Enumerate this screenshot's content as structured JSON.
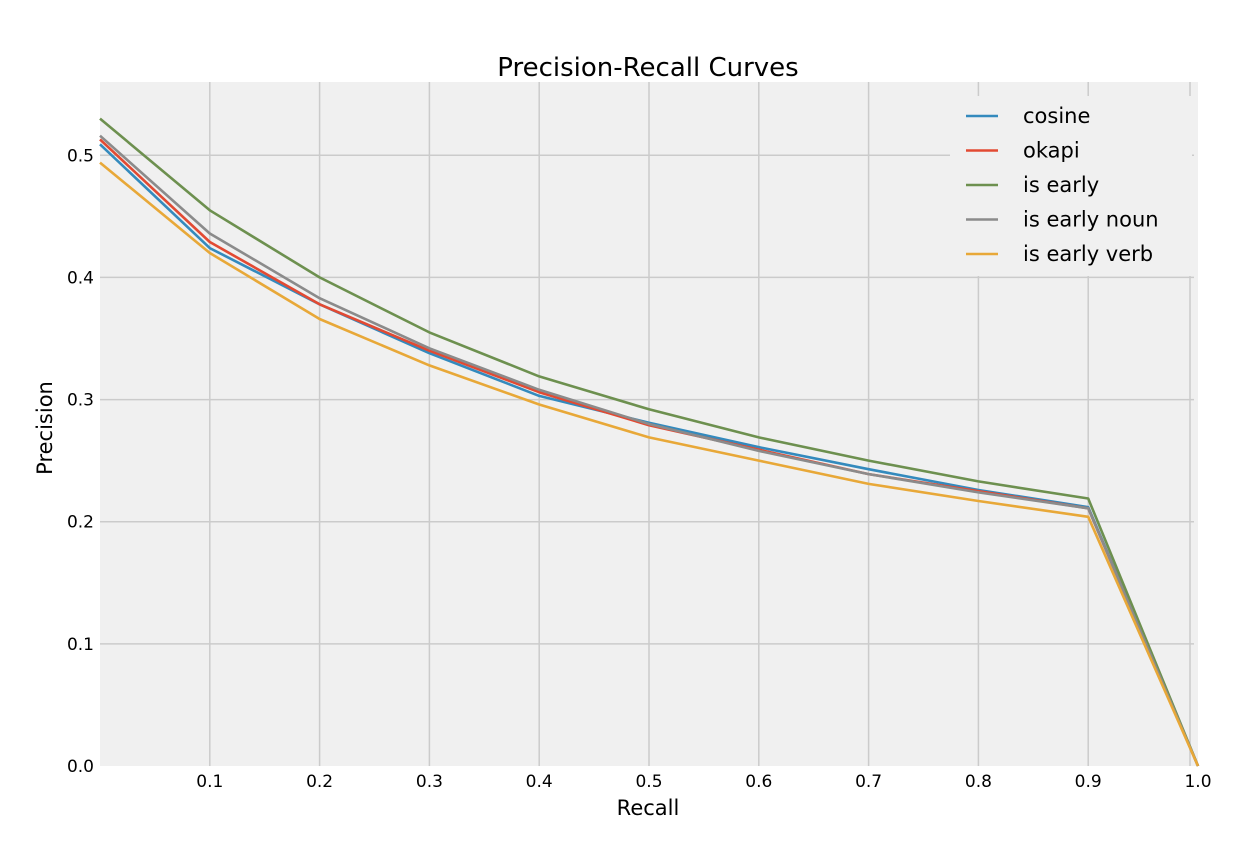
{
  "chart_data": {
    "type": "line",
    "title": "Precision-Recall Curves",
    "xlabel": "Recall",
    "ylabel": "Precision",
    "xlim": [
      0.0,
      1.0
    ],
    "ylim": [
      0.0,
      0.56
    ],
    "xticks": [
      0.1,
      0.2,
      0.3,
      0.4,
      0.5,
      0.6,
      0.7,
      0.8,
      0.9,
      1.0
    ],
    "xtick_labels": [
      "0.1",
      "0.2",
      "0.3",
      "0.4",
      "0.5",
      "0.6",
      "0.7",
      "0.8",
      "0.9",
      "1.0"
    ],
    "yticks": [
      0.0,
      0.1,
      0.2,
      0.3,
      0.4,
      0.5
    ],
    "ytick_labels": [
      "0.0",
      "0.1",
      "0.2",
      "0.3",
      "0.4",
      "0.5"
    ],
    "grid": true,
    "legend_position": "top-right",
    "x": [
      0.0,
      0.1,
      0.2,
      0.3,
      0.4,
      0.5,
      0.6,
      0.7,
      0.8,
      0.9,
      1.0
    ],
    "series": [
      {
        "name": "cosine",
        "color": "#348abd",
        "values": [
          0.509,
          0.424,
          0.378,
          0.338,
          0.303,
          0.281,
          0.261,
          0.243,
          0.226,
          0.212,
          0.0
        ]
      },
      {
        "name": "okapi",
        "color": "#e24a33",
        "values": [
          0.513,
          0.429,
          0.378,
          0.34,
          0.306,
          0.279,
          0.259,
          0.239,
          0.225,
          0.211,
          0.0
        ]
      },
      {
        "name": "is early",
        "color": "#6d904f",
        "values": [
          0.53,
          0.455,
          0.4,
          0.355,
          0.319,
          0.292,
          0.269,
          0.25,
          0.233,
          0.219,
          0.0
        ]
      },
      {
        "name": "is early noun",
        "color": "#8b8b8b",
        "values": [
          0.516,
          0.436,
          0.383,
          0.342,
          0.308,
          0.28,
          0.258,
          0.239,
          0.224,
          0.211,
          0.0
        ]
      },
      {
        "name": "is early verb",
        "color": "#e8a838",
        "values": [
          0.494,
          0.42,
          0.366,
          0.328,
          0.296,
          0.269,
          0.25,
          0.231,
          0.217,
          0.204,
          0.0
        ]
      }
    ]
  }
}
